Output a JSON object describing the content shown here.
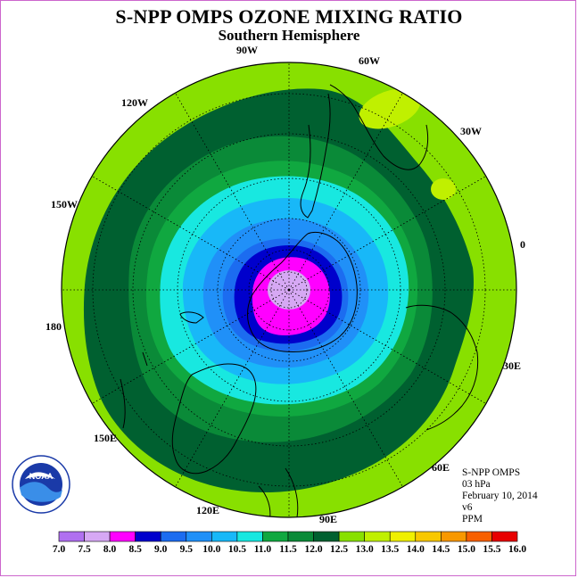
{
  "title": "S-NPP OMPS OZONE MIXING RATIO",
  "subtitle": "Southern Hemisphere",
  "longitude_labels": [
    "90W",
    "60W",
    "30W",
    "0",
    "30E",
    "60E",
    "90E",
    "120E",
    "150E",
    "180",
    "150W",
    "120W"
  ],
  "info": {
    "instrument": "S-NPP OMPS",
    "level": "03 hPa",
    "date": "February 10, 2014",
    "version": "v6",
    "unit": "PPM"
  },
  "logo_text": "NOAA",
  "colorbar": {
    "ticks": [
      "7.0",
      "7.5",
      "8.0",
      "8.5",
      "9.0",
      "9.5",
      "10.0",
      "10.5",
      "11.0",
      "11.5",
      "12.0",
      "12.5",
      "13.0",
      "13.5",
      "14.0",
      "14.5",
      "15.0",
      "15.5",
      "16.0"
    ],
    "colors": [
      "#b070f0",
      "#d6a8f4",
      "#ff00ff",
      "#0000cc",
      "#1c6cf0",
      "#2090f8",
      "#18b8f8",
      "#18e8e0",
      "#10a840",
      "#0a8a38",
      "#006030",
      "#88e000",
      "#c0f000",
      "#f0f000",
      "#f8c800",
      "#f89800",
      "#f86000",
      "#e80000",
      "#884c30"
    ]
  },
  "field": {
    "center_value_ppm": 7.5,
    "rings_ppm": [
      8.0,
      8.5,
      9.0,
      9.5,
      10.0,
      10.5,
      11.0,
      11.5,
      12.0,
      12.5
    ],
    "colors": {
      "pole": "#d6a8f4",
      "magenta": "#ff00ff",
      "dark_blue": "#0000cc",
      "blue": "#1c6cf0",
      "mid_blue": "#2090f8",
      "light_blue": "#18b8f8",
      "cyan": "#18e8e0",
      "green": "#10a840",
      "mid_green": "#0a8a38",
      "dark_green": "#006030",
      "lime": "#88e000",
      "yellow_green": "#c0f000",
      "coast": "#000000",
      "grid": "#000000"
    }
  }
}
